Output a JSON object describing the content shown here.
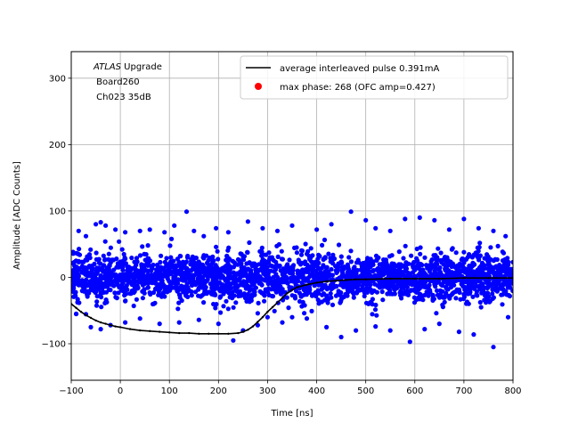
{
  "chart_data": {
    "type": "scatter",
    "xlabel": "Time [ns]",
    "ylabel": "Amplitude [ADC Counts]",
    "xlim": [
      -100,
      800
    ],
    "ylim": [
      -155,
      340
    ],
    "xticks": [
      -100,
      0,
      100,
      200,
      300,
      400,
      500,
      600,
      700,
      800
    ],
    "yticks": [
      -100,
      0,
      100,
      200,
      300
    ],
    "grid": true,
    "legend_position": "top-right",
    "annotation": {
      "experiment": "ATLAS",
      "experiment_suffix": " Upgrade",
      "line2": " Board260",
      "line3": " Ch023 35dB"
    },
    "series": [
      {
        "name": "average interleaved pulse 0.391mA",
        "kind": "line",
        "color": "#000000",
        "x": [
          -100,
          -90,
          -80,
          -70,
          -60,
          -50,
          -40,
          -30,
          -20,
          -10,
          0,
          20,
          40,
          60,
          80,
          100,
          120,
          140,
          160,
          180,
          200,
          220,
          240,
          250,
          260,
          270,
          280,
          290,
          300,
          310,
          320,
          330,
          340,
          350,
          360,
          380,
          400,
          420,
          440,
          460,
          480,
          500,
          550,
          600,
          650,
          700,
          750,
          800
        ],
        "y": [
          -40,
          -46,
          -52,
          -57,
          -61,
          -65,
          -68,
          -70,
          -72,
          -74,
          -75,
          -78,
          -80,
          -81,
          -82,
          -83,
          -84,
          -84,
          -85,
          -85,
          -85,
          -85,
          -84,
          -82,
          -79,
          -74,
          -67,
          -60,
          -52,
          -45,
          -38,
          -31,
          -24,
          -19,
          -15,
          -11,
          -8,
          -6,
          -5,
          -4,
          -3,
          -3,
          -2,
          -2,
          -2,
          -1,
          -1,
          -1
        ]
      },
      {
        "name": "max phase: 268 (OFC amp=0.427)",
        "kind": "scatter",
        "color": "#ff0000",
        "x": [],
        "y": []
      },
      {
        "name": "",
        "kind": "scatter-noise",
        "color": "#0000ff",
        "x_range": [
          -100,
          800
        ],
        "core_sigma": 18,
        "outliers": [
          [
            -85,
            70
          ],
          [
            -70,
            62
          ],
          [
            -50,
            80
          ],
          [
            -40,
            83
          ],
          [
            -30,
            78
          ],
          [
            -10,
            72
          ],
          [
            10,
            68
          ],
          [
            40,
            70
          ],
          [
            60,
            72
          ],
          [
            90,
            68
          ],
          [
            110,
            78
          ],
          [
            135,
            99
          ],
          [
            150,
            70
          ],
          [
            170,
            62
          ],
          [
            195,
            74
          ],
          [
            220,
            68
          ],
          [
            260,
            84
          ],
          [
            290,
            74
          ],
          [
            320,
            70
          ],
          [
            350,
            78
          ],
          [
            400,
            72
          ],
          [
            430,
            80
          ],
          [
            470,
            99
          ],
          [
            500,
            86
          ],
          [
            520,
            74
          ],
          [
            550,
            70
          ],
          [
            580,
            88
          ],
          [
            610,
            90
          ],
          [
            640,
            86
          ],
          [
            670,
            72
          ],
          [
            700,
            88
          ],
          [
            730,
            74
          ],
          [
            760,
            70
          ],
          [
            785,
            62
          ],
          [
            -90,
            -55
          ],
          [
            -60,
            -75
          ],
          [
            -40,
            -78
          ],
          [
            -20,
            -72
          ],
          [
            10,
            -68
          ],
          [
            40,
            -62
          ],
          [
            80,
            -70
          ],
          [
            120,
            -68
          ],
          [
            160,
            -64
          ],
          [
            200,
            -70
          ],
          [
            230,
            -95
          ],
          [
            250,
            -80
          ],
          [
            280,
            -72
          ],
          [
            300,
            -60
          ],
          [
            330,
            -68
          ],
          [
            350,
            -60
          ],
          [
            380,
            -62
          ],
          [
            420,
            -75
          ],
          [
            450,
            -90
          ],
          [
            480,
            -80
          ],
          [
            520,
            -74
          ],
          [
            550,
            -80
          ],
          [
            590,
            -97
          ],
          [
            620,
            -78
          ],
          [
            650,
            -70
          ],
          [
            690,
            -82
          ],
          [
            720,
            -86
          ],
          [
            760,
            -105
          ],
          [
            790,
            -60
          ]
        ]
      }
    ]
  }
}
